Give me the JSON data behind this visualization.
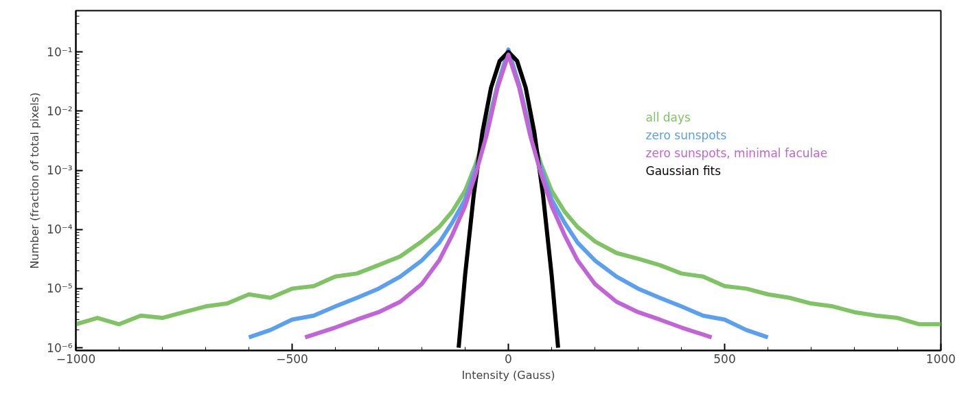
{
  "chart_data": {
    "type": "line",
    "xlabel": "Intensity (Gauss)",
    "ylabel": "Number (fraction of total pixels)",
    "log": "y",
    "grid": false,
    "legend": "top right",
    "line_style": "solid",
    "marker": "none",
    "xlim": [
      -1000,
      1000
    ],
    "xticks": [
      {
        "value": -1000,
        "label": "−1000"
      },
      {
        "value": -500,
        "label": "−500"
      },
      0,
      500,
      1000
    ],
    "ylim": [
      9e-07,
      0.5
    ],
    "yticks": [
      {
        "value": 1e-06,
        "label": "10⁻⁶"
      },
      {
        "value": 1e-05,
        "label": "10⁻⁵"
      },
      {
        "value": 0.0001,
        "label": "10⁻⁴"
      },
      {
        "value": 0.001,
        "label": "10⁻³"
      },
      {
        "value": 0.01,
        "label": "10⁻²"
      },
      {
        "value": 0.1,
        "label": "10⁻¹"
      }
    ],
    "series": [
      {
        "name": "all days",
        "color": "#7fc364",
        "x": [
          -1000,
          -950,
          -900,
          -850,
          -800,
          -750,
          -700,
          -650,
          -600,
          -550,
          -500,
          -450,
          -400,
          -350,
          -300,
          -250,
          -200,
          -160,
          -130,
          -100,
          -75,
          -50,
          -25,
          0,
          25,
          50,
          75,
          100,
          130,
          160,
          200,
          250,
          300,
          350,
          400,
          450,
          500,
          550,
          600,
          650,
          700,
          750,
          800,
          850,
          900,
          950,
          1000
        ],
        "values": [
          2.5e-06,
          3.2e-06,
          2.5e-06,
          3.5e-06,
          3.2e-06,
          4e-06,
          5e-06,
          5.6e-06,
          8e-06,
          7e-06,
          1e-05,
          1.1e-05,
          1.6e-05,
          1.8e-05,
          2.5e-05,
          3.5e-05,
          6.3e-05,
          0.00011,
          0.0002,
          0.00045,
          0.0013,
          0.005,
          0.028,
          0.1,
          0.028,
          0.005,
          0.0013,
          0.00045,
          0.0002,
          0.00011,
          6.3e-05,
          4e-05,
          3.2e-05,
          2.5e-05,
          1.8e-05,
          1.6e-05,
          1.1e-05,
          1e-05,
          8e-06,
          7e-06,
          5.6e-06,
          5e-06,
          4e-06,
          3.5e-06,
          3.2e-06,
          2.5e-06,
          2.5e-06
        ]
      },
      {
        "name": "zero sunspots",
        "color": "#5aa0ee",
        "x": [
          -600,
          -550,
          -500,
          -450,
          -400,
          -350,
          -300,
          -250,
          -200,
          -160,
          -130,
          -100,
          -75,
          -50,
          -25,
          0,
          25,
          50,
          75,
          100,
          130,
          160,
          200,
          250,
          300,
          350,
          400,
          450,
          500,
          550,
          600
        ],
        "values": [
          1.5e-06,
          2e-06,
          3e-06,
          3.5e-06,
          5e-06,
          7e-06,
          1e-05,
          1.6e-05,
          3e-05,
          6e-05,
          0.00013,
          0.00032,
          0.0011,
          0.0045,
          0.027,
          0.11,
          0.027,
          0.0045,
          0.0011,
          0.00032,
          0.00013,
          6e-05,
          3e-05,
          1.6e-05,
          1e-05,
          7e-06,
          5e-06,
          3.5e-06,
          3e-06,
          2e-06,
          1.5e-06
        ]
      },
      {
        "name": "Gaussian fits",
        "color": "#000000",
        "x": [
          -115,
          -100,
          -80,
          -60,
          -40,
          -20,
          0,
          20,
          40,
          60,
          80,
          100,
          115
        ],
        "values": [
          1e-06,
          1.7e-05,
          0.00039,
          0.0044,
          0.025,
          0.071,
          0.1,
          0.071,
          0.025,
          0.0044,
          0.00039,
          1.7e-05,
          1e-06
        ]
      },
      {
        "name": "zero sunspots, minimal faculae",
        "color": "#c165d6",
        "x": [
          -470,
          -400,
          -350,
          -300,
          -250,
          -200,
          -160,
          -130,
          -100,
          -75,
          -50,
          -25,
          0,
          25,
          50,
          75,
          100,
          130,
          160,
          200,
          250,
          300,
          350,
          400,
          470
        ],
        "values": [
          1.5e-06,
          2.2e-06,
          3e-06,
          4e-06,
          6e-06,
          1.2e-05,
          3e-05,
          8e-05,
          0.00025,
          0.0009,
          0.004,
          0.025,
          0.09,
          0.025,
          0.004,
          0.0009,
          0.00025,
          8e-05,
          3e-05,
          1.2e-05,
          6e-06,
          4e-06,
          3e-06,
          2.2e-06,
          1.5e-06
        ]
      }
    ]
  }
}
